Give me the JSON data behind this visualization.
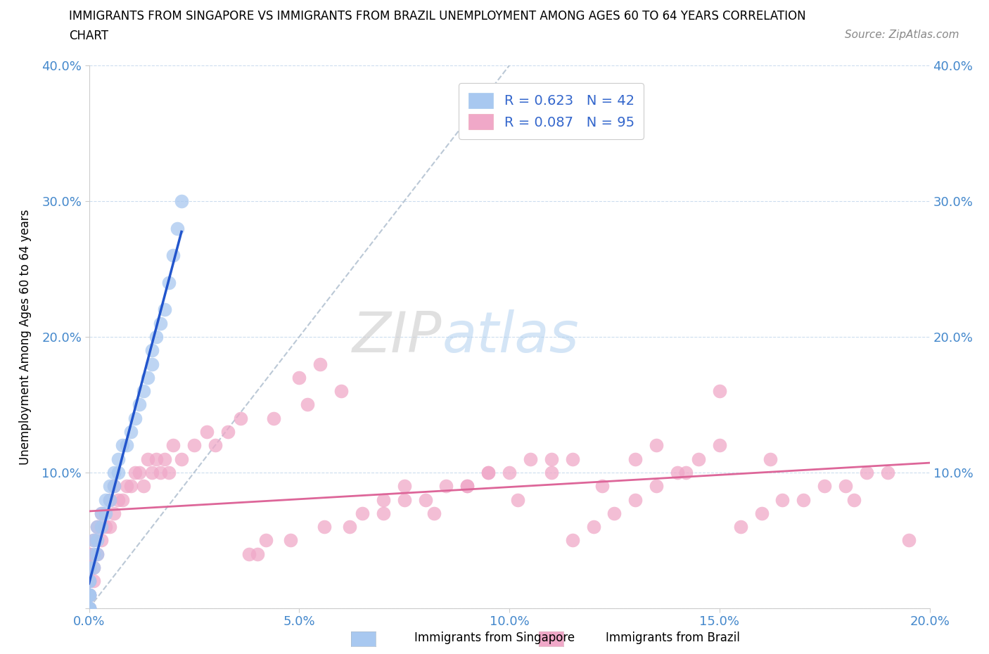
{
  "title_line1": "IMMIGRANTS FROM SINGAPORE VS IMMIGRANTS FROM BRAZIL UNEMPLOYMENT AMONG AGES 60 TO 64 YEARS CORRELATION",
  "title_line2": "CHART",
  "source_text": "Source: ZipAtlas.com",
  "ylabel": "Unemployment Among Ages 60 to 64 years",
  "xlim": [
    0.0,
    0.2
  ],
  "ylim": [
    0.0,
    0.4
  ],
  "xticks": [
    0.0,
    0.05,
    0.1,
    0.15,
    0.2
  ],
  "yticks": [
    0.0,
    0.1,
    0.2,
    0.3,
    0.4
  ],
  "xticklabels": [
    "0.0%",
    "5.0%",
    "10.0%",
    "15.0%",
    "20.0%"
  ],
  "yticklabels": [
    "",
    "10.0%",
    "20.0%",
    "30.0%",
    "40.0%"
  ],
  "singapore_color": "#a8c8f0",
  "brazil_color": "#f0a8c8",
  "singapore_R": 0.623,
  "singapore_N": 42,
  "brazil_R": 0.087,
  "brazil_N": 95,
  "singapore_line_color": "#2255cc",
  "brazil_line_color": "#dd6699",
  "reference_line_color": "#aabbcc",
  "legend_label_singapore": "Immigrants from Singapore",
  "legend_label_brazil": "Immigrants from Brazil",
  "watermark_zip": "ZIP",
  "watermark_atlas": "atlas",
  "singapore_x": [
    0.0,
    0.0,
    0.0,
    0.0,
    0.0,
    0.0,
    0.0,
    0.0,
    0.0,
    0.0,
    0.001,
    0.001,
    0.001,
    0.002,
    0.002,
    0.002,
    0.003,
    0.003,
    0.004,
    0.004,
    0.005,
    0.005,
    0.006,
    0.006,
    0.007,
    0.007,
    0.008,
    0.009,
    0.01,
    0.011,
    0.012,
    0.013,
    0.014,
    0.015,
    0.016,
    0.017,
    0.018,
    0.019,
    0.02,
    0.021,
    0.022,
    0.015
  ],
  "singapore_y": [
    0.0,
    0.0,
    0.0,
    0.0,
    0.01,
    0.01,
    0.01,
    0.02,
    0.02,
    0.03,
    0.03,
    0.04,
    0.05,
    0.04,
    0.05,
    0.06,
    0.06,
    0.07,
    0.07,
    0.08,
    0.08,
    0.09,
    0.09,
    0.1,
    0.1,
    0.11,
    0.12,
    0.12,
    0.13,
    0.14,
    0.15,
    0.16,
    0.17,
    0.19,
    0.2,
    0.21,
    0.22,
    0.24,
    0.26,
    0.28,
    0.3,
    0.18
  ],
  "brazil_x": [
    0.0,
    0.0,
    0.0,
    0.0,
    0.0,
    0.0,
    0.0,
    0.0,
    0.0,
    0.0,
    0.001,
    0.001,
    0.001,
    0.002,
    0.002,
    0.003,
    0.003,
    0.004,
    0.005,
    0.005,
    0.006,
    0.006,
    0.007,
    0.008,
    0.009,
    0.01,
    0.011,
    0.012,
    0.013,
    0.014,
    0.015,
    0.016,
    0.017,
    0.018,
    0.019,
    0.02,
    0.022,
    0.025,
    0.028,
    0.03,
    0.033,
    0.036,
    0.04,
    0.044,
    0.048,
    0.052,
    0.056,
    0.06,
    0.065,
    0.07,
    0.075,
    0.08,
    0.085,
    0.09,
    0.095,
    0.1,
    0.105,
    0.11,
    0.115,
    0.12,
    0.125,
    0.13,
    0.135,
    0.14,
    0.145,
    0.15,
    0.155,
    0.16,
    0.165,
    0.17,
    0.175,
    0.18,
    0.185,
    0.19,
    0.195,
    0.05,
    0.07,
    0.09,
    0.11,
    0.13,
    0.15,
    0.038,
    0.042,
    0.062,
    0.082,
    0.102,
    0.122,
    0.142,
    0.162,
    0.182,
    0.055,
    0.075,
    0.095,
    0.115,
    0.135
  ],
  "brazil_y": [
    0.0,
    0.0,
    0.01,
    0.01,
    0.02,
    0.02,
    0.03,
    0.03,
    0.04,
    0.04,
    0.02,
    0.03,
    0.05,
    0.04,
    0.06,
    0.05,
    0.07,
    0.06,
    0.06,
    0.08,
    0.07,
    0.09,
    0.08,
    0.08,
    0.09,
    0.09,
    0.1,
    0.1,
    0.09,
    0.11,
    0.1,
    0.11,
    0.1,
    0.11,
    0.1,
    0.12,
    0.11,
    0.12,
    0.13,
    0.12,
    0.13,
    0.14,
    0.04,
    0.14,
    0.05,
    0.15,
    0.06,
    0.16,
    0.07,
    0.07,
    0.08,
    0.08,
    0.09,
    0.09,
    0.1,
    0.1,
    0.11,
    0.11,
    0.05,
    0.06,
    0.07,
    0.08,
    0.09,
    0.1,
    0.11,
    0.12,
    0.06,
    0.07,
    0.08,
    0.08,
    0.09,
    0.09,
    0.1,
    0.1,
    0.05,
    0.17,
    0.08,
    0.09,
    0.1,
    0.11,
    0.16,
    0.04,
    0.05,
    0.06,
    0.07,
    0.08,
    0.09,
    0.1,
    0.11,
    0.08,
    0.18,
    0.09,
    0.1,
    0.11,
    0.12
  ]
}
